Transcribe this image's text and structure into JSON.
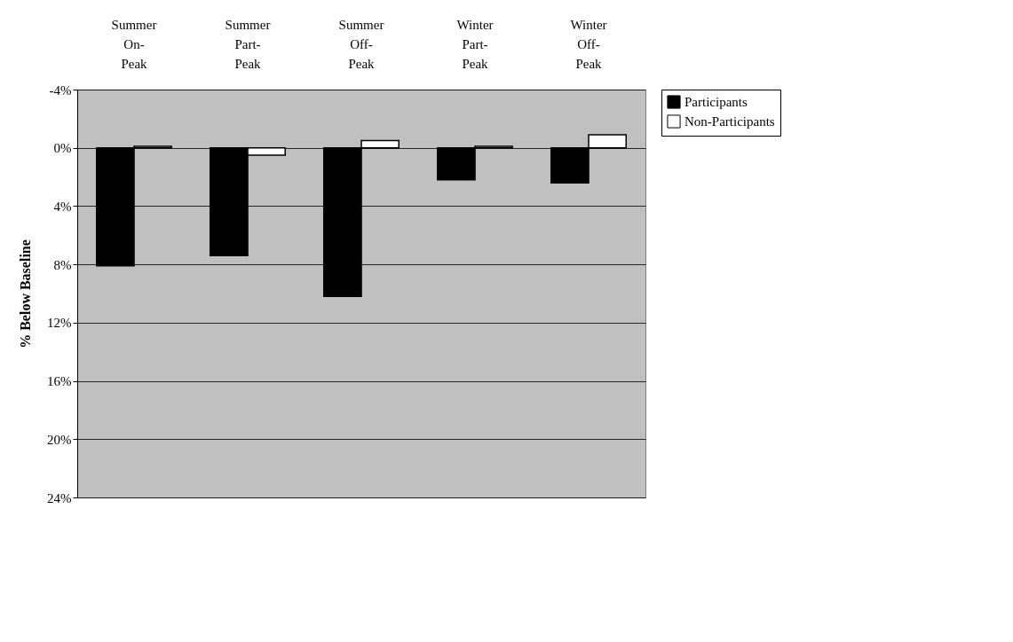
{
  "chart_data": {
    "type": "bar",
    "categories": [
      "Summer On-Peak",
      "Summer Part-Peak",
      "Summer Off-Peak",
      "Winter Part-Peak",
      "Winter Off-Peak"
    ],
    "series": [
      {
        "name": "Participants",
        "color": "#000000",
        "values": [
          8.1,
          7.4,
          10.2,
          2.2,
          2.4
        ]
      },
      {
        "name": "Non-Participants",
        "color": "#ffffff",
        "values": [
          -0.1,
          0.5,
          -0.5,
          -0.1,
          -0.9
        ]
      }
    ],
    "ylabel": "% Below Baseline",
    "ylim": [
      24,
      -4
    ],
    "yticks": [
      {
        "value": -4,
        "label": "-4%"
      },
      {
        "value": 0,
        "label": "0%"
      },
      {
        "value": 4,
        "label": "4%"
      },
      {
        "value": 8,
        "label": "8%"
      },
      {
        "value": 12,
        "label": "12%"
      },
      {
        "value": 16,
        "label": "16%"
      },
      {
        "value": 20,
        "label": "20%"
      },
      {
        "value": 24,
        "label": "24%"
      }
    ],
    "grid": "y",
    "legend": "right"
  }
}
